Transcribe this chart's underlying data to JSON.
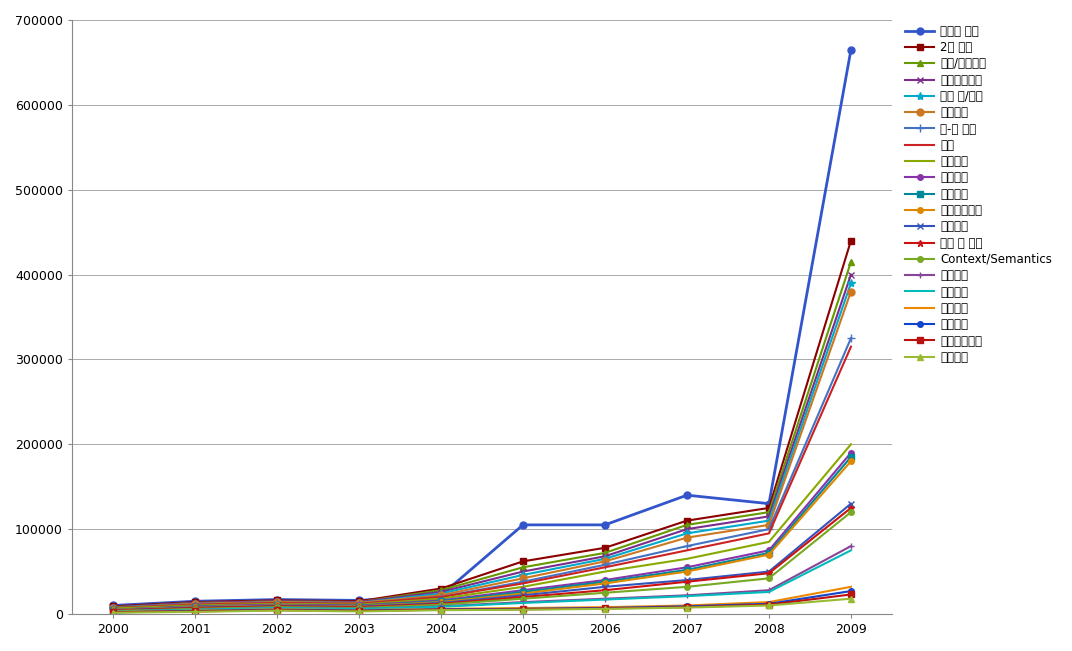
{
  "years": [
    2000,
    2001,
    2002,
    2003,
    2004,
    2005,
    2006,
    2007,
    2008,
    2009
  ],
  "series": [
    {
      "label": "바퀴식 구동",
      "color": "#3355CC",
      "marker": "o",
      "markersize": 5,
      "linewidth": 2.0,
      "values": [
        10000,
        15000,
        17000,
        16000,
        22000,
        105000,
        105000,
        140000,
        130000,
        665000
      ]
    },
    {
      "label": "2족 보행",
      "color": "#8B0000",
      "marker": "s",
      "markersize": 5,
      "linewidth": 1.5,
      "values": [
        9000,
        14000,
        16000,
        15000,
        30000,
        62000,
        78000,
        110000,
        125000,
        440000
      ]
    },
    {
      "label": "계단/험지이동",
      "color": "#669900",
      "marker": "^",
      "markersize": 5,
      "linewidth": 1.5,
      "values": [
        8000,
        13000,
        15000,
        14000,
        28000,
        55000,
        72000,
        105000,
        120000,
        415000
      ]
    },
    {
      "label": "머니플레이터",
      "color": "#7B2D8B",
      "marker": "x",
      "markersize": 5,
      "linewidth": 1.5,
      "values": [
        8000,
        13000,
        15000,
        14000,
        26000,
        50000,
        68000,
        100000,
        115000,
        400000
      ]
    },
    {
      "label": "로봇 손/손목",
      "color": "#00AACC",
      "marker": "*",
      "markersize": 6,
      "linewidth": 1.5,
      "values": [
        7500,
        12000,
        14000,
        13000,
        24000,
        46000,
        65000,
        95000,
        110000,
        390000
      ]
    },
    {
      "label": "햄틱장치",
      "color": "#CC7722",
      "marker": "o",
      "markersize": 5,
      "linewidth": 1.5,
      "values": [
        7000,
        12000,
        14000,
        13000,
        22000,
        42000,
        62000,
        90000,
        105000,
        380000
      ]
    },
    {
      "label": "눈-목 기구",
      "color": "#4472C4",
      "marker": "+",
      "markersize": 6,
      "linewidth": 1.5,
      "values": [
        7000,
        11000,
        13000,
        12000,
        20000,
        38000,
        58000,
        80000,
        100000,
        325000
      ]
    },
    {
      "label": "관절",
      "color": "#CC2222",
      "marker": "None",
      "markersize": 0,
      "linewidth": 1.5,
      "values": [
        7000,
        11000,
        13000,
        12000,
        20000,
        36000,
        55000,
        75000,
        95000,
        315000
      ]
    },
    {
      "label": "시각인식",
      "color": "#88AA00",
      "marker": "None",
      "markersize": 0,
      "linewidth": 1.5,
      "values": [
        6500,
        10000,
        12000,
        11000,
        18000,
        32000,
        50000,
        65000,
        85000,
        200000
      ]
    },
    {
      "label": "음성인식",
      "color": "#8833AA",
      "marker": "o",
      "markersize": 4,
      "linewidth": 1.5,
      "values": [
        5000,
        9000,
        11000,
        10000,
        16000,
        28000,
        40000,
        55000,
        75000,
        190000
      ]
    },
    {
      "label": "지도작성",
      "color": "#008899",
      "marker": "s",
      "markersize": 4,
      "linewidth": 1.5,
      "values": [
        5000,
        8500,
        10000,
        9500,
        15000,
        26000,
        38000,
        52000,
        72000,
        185000
      ]
    },
    {
      "label": "자기위치인식",
      "color": "#DD8800",
      "marker": "o",
      "markersize": 4,
      "linewidth": 1.5,
      "values": [
        5000,
        8000,
        10000,
        9000,
        14000,
        24000,
        36000,
        50000,
        70000,
        180000
      ]
    },
    {
      "label": "환경인식",
      "color": "#3355BB",
      "marker": "x",
      "markersize": 5,
      "linewidth": 1.5,
      "values": [
        4500,
        7500,
        9500,
        8500,
        13000,
        22000,
        32000,
        40000,
        50000,
        130000
      ]
    },
    {
      "label": "학습 및 추론",
      "color": "#CC1111",
      "marker": "*",
      "markersize": 5,
      "linewidth": 1.5,
      "values": [
        4000,
        7000,
        9000,
        8000,
        12000,
        20000,
        28000,
        38000,
        48000,
        125000
      ]
    },
    {
      "label": "Context/Semantics",
      "color": "#77AA22",
      "marker": "o",
      "markersize": 4,
      "linewidth": 1.5,
      "values": [
        3500,
        6000,
        8000,
        7000,
        11000,
        18000,
        25000,
        32000,
        42000,
        120000
      ]
    },
    {
      "label": "센서융합",
      "color": "#884499",
      "marker": "+",
      "markersize": 5,
      "linewidth": 1.5,
      "values": [
        3000,
        5000,
        7000,
        6000,
        9000,
        14000,
        18000,
        22000,
        28000,
        80000
      ]
    },
    {
      "label": "제어구조",
      "color": "#00BBBB",
      "marker": "None",
      "markersize": 0,
      "linewidth": 1.5,
      "values": [
        3000,
        5000,
        7000,
        6000,
        8500,
        13000,
        17000,
        21000,
        26000,
        75000
      ]
    },
    {
      "label": "주행제어",
      "color": "#EE8800",
      "marker": "None",
      "markersize": 0,
      "linewidth": 1.5,
      "values": [
        2500,
        4000,
        5500,
        4500,
        6000,
        7000,
        8000,
        10000,
        14000,
        32000
      ]
    },
    {
      "label": "보행제어",
      "color": "#1144CC",
      "marker": "o",
      "markersize": 4,
      "linewidth": 1.5,
      "values": [
        2000,
        3500,
        5000,
        4000,
        5500,
        6000,
        7000,
        9000,
        12000,
        27000
      ]
    },
    {
      "label": "머니플레이터",
      "color": "#BB1111",
      "marker": "s",
      "markersize": 4,
      "linewidth": 1.5,
      "values": [
        2000,
        3000,
        4500,
        3500,
        5000,
        5500,
        6500,
        8000,
        11000,
        23000
      ]
    },
    {
      "label": "지능제어",
      "color": "#99BB33",
      "marker": "^",
      "markersize": 4,
      "linewidth": 1.5,
      "values": [
        1500,
        2500,
        4000,
        3000,
        4500,
        5000,
        6000,
        7500,
        10000,
        18000
      ]
    }
  ],
  "xlim": [
    1999.5,
    2009.5
  ],
  "ylim": [
    0,
    700000
  ],
  "yticks": [
    0,
    100000,
    200000,
    300000,
    400000,
    500000,
    600000,
    700000
  ],
  "xticks": [
    2000,
    2001,
    2002,
    2003,
    2004,
    2005,
    2006,
    2007,
    2008,
    2009
  ],
  "background_color": "#FFFFFF",
  "grid_color": "#AAAAAA",
  "figsize": [
    10.72,
    6.51
  ],
  "dpi": 100
}
